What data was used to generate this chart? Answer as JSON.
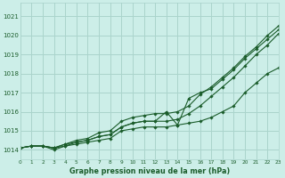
{
  "title": "Graphe pression niveau de la mer (hPa)",
  "bg_color": "#cceee8",
  "grid_color": "#aad4cc",
  "line_color": "#1a5c2a",
  "x_min": 0,
  "x_max": 23,
  "y_min": 1013.5,
  "y_max": 1021.7,
  "y_ticks": [
    1014,
    1015,
    1016,
    1017,
    1018,
    1019,
    1020,
    1021
  ],
  "x_ticks": [
    0,
    1,
    2,
    3,
    4,
    5,
    6,
    7,
    8,
    9,
    10,
    11,
    12,
    13,
    14,
    15,
    16,
    17,
    18,
    19,
    20,
    21,
    22,
    23
  ],
  "series": [
    [
      1014.1,
      1014.2,
      1014.2,
      1014.1,
      1014.2,
      1014.3,
      1014.4,
      1014.5,
      1014.6,
      1015.0,
      1015.1,
      1015.2,
      1015.2,
      1015.2,
      1015.3,
      1015.4,
      1015.5,
      1015.7,
      1016.0,
      1016.3,
      1017.0,
      1017.5,
      1018.0,
      1018.3
    ],
    [
      1014.1,
      1014.2,
      1014.2,
      1014.1,
      1014.3,
      1014.4,
      1014.5,
      1014.7,
      1014.8,
      1015.2,
      1015.4,
      1015.5,
      1015.5,
      1015.5,
      1015.6,
      1015.9,
      1016.3,
      1016.8,
      1017.3,
      1017.8,
      1018.4,
      1019.0,
      1019.5,
      1020.1
    ],
    [
      1014.1,
      1014.2,
      1014.2,
      1014.1,
      1014.3,
      1014.5,
      1014.6,
      1014.9,
      1015.0,
      1015.5,
      1015.7,
      1015.8,
      1015.9,
      1015.9,
      1016.0,
      1016.3,
      1016.9,
      1017.3,
      1017.8,
      1018.3,
      1018.9,
      1019.4,
      1020.0,
      1020.5
    ],
    [
      1014.1,
      1014.2,
      1014.2,
      1014.0,
      1014.2,
      1014.4,
      1014.5,
      1014.7,
      1014.8,
      1015.2,
      1015.4,
      1015.5,
      1015.5,
      1016.0,
      1015.3,
      1016.7,
      1017.0,
      1017.2,
      1017.7,
      1018.2,
      1018.8,
      1019.3,
      1019.8,
      1020.3
    ]
  ]
}
